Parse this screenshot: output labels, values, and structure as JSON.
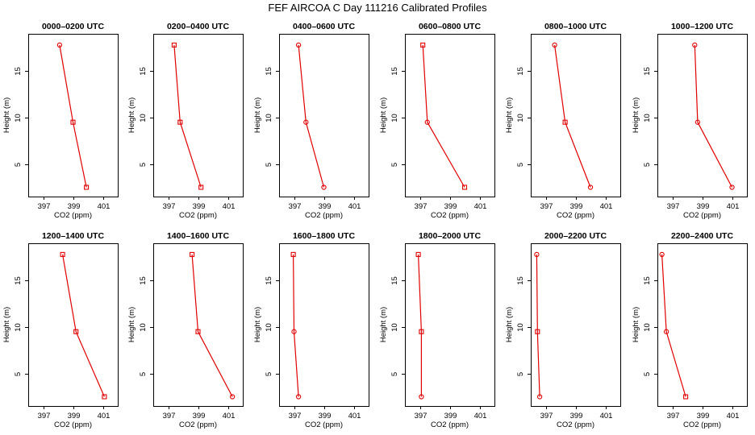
{
  "figure_title": "FEF AIRCOA C  Day 111216  Calibrated Profiles",
  "series_color": "#e00000",
  "chart_data": [
    {
      "type": "line",
      "title": "0000–0200 UTC",
      "xlabel": "CO2 (ppm)",
      "ylabel": "Height (m)",
      "xlim": [
        396,
        402
      ],
      "ylim": [
        1.5,
        19
      ],
      "xticks": [
        397,
        399,
        401
      ],
      "yticks": [
        5,
        10,
        15
      ],
      "x": [
        399.9,
        399.0,
        398.1
      ],
      "y": [
        2.5,
        9.5,
        17.8
      ],
      "markers": [
        "square",
        "square",
        "circle"
      ]
    },
    {
      "type": "line",
      "title": "0200–0400 UTC",
      "xlabel": "CO2 (ppm)",
      "ylabel": "Height (m)",
      "xlim": [
        396,
        402
      ],
      "ylim": [
        1.5,
        19
      ],
      "xticks": [
        397,
        399,
        401
      ],
      "yticks": [
        5,
        10,
        15
      ],
      "x": [
        399.2,
        397.8,
        397.4
      ],
      "y": [
        2.5,
        9.5,
        17.8
      ],
      "markers": [
        "square",
        "square",
        "square"
      ]
    },
    {
      "type": "line",
      "title": "0400–0600 UTC",
      "xlabel": "CO2 (ppm)",
      "ylabel": "Height (m)",
      "xlim": [
        396,
        402
      ],
      "ylim": [
        1.5,
        19
      ],
      "xticks": [
        397,
        399,
        401
      ],
      "yticks": [
        5,
        10,
        15
      ],
      "x": [
        399.0,
        397.8,
        397.3
      ],
      "y": [
        2.5,
        9.5,
        17.8
      ],
      "markers": [
        "circle",
        "circle",
        "circle"
      ]
    },
    {
      "type": "line",
      "title": "0600–0800 UTC",
      "xlabel": "CO2 (ppm)",
      "ylabel": "Height (m)",
      "xlim": [
        396,
        402
      ],
      "ylim": [
        1.5,
        19
      ],
      "xticks": [
        397,
        399,
        401
      ],
      "yticks": [
        5,
        10,
        15
      ],
      "x": [
        400.0,
        397.5,
        397.2
      ],
      "y": [
        2.5,
        9.5,
        17.8
      ],
      "markers": [
        "square",
        "circle",
        "square"
      ]
    },
    {
      "type": "line",
      "title": "0800–1000 UTC",
      "xlabel": "CO2 (ppm)",
      "ylabel": "Height (m)",
      "xlim": [
        396,
        402
      ],
      "ylim": [
        1.5,
        19
      ],
      "xticks": [
        397,
        399,
        401
      ],
      "yticks": [
        5,
        10,
        15
      ],
      "x": [
        400.0,
        398.3,
        397.6
      ],
      "y": [
        2.5,
        9.5,
        17.8
      ],
      "markers": [
        "circle",
        "square",
        "circle"
      ]
    },
    {
      "type": "line",
      "title": "1000–1200 UTC",
      "xlabel": "CO2 (ppm)",
      "ylabel": "Height (m)",
      "xlim": [
        396,
        402
      ],
      "ylim": [
        1.5,
        19
      ],
      "xticks": [
        397,
        399,
        401
      ],
      "yticks": [
        5,
        10,
        15
      ],
      "x": [
        401.0,
        398.7,
        398.5
      ],
      "y": [
        2.5,
        9.5,
        17.8
      ],
      "markers": [
        "circle",
        "circle",
        "circle"
      ]
    },
    {
      "type": "line",
      "title": "1200–1400 UTC",
      "xlabel": "CO2 (ppm)",
      "ylabel": "Height (m)",
      "xlim": [
        396,
        402
      ],
      "ylim": [
        1.5,
        19
      ],
      "xticks": [
        397,
        399,
        401
      ],
      "yticks": [
        5,
        10,
        15
      ],
      "x": [
        401.1,
        399.2,
        398.3
      ],
      "y": [
        2.5,
        9.5,
        17.8
      ],
      "markers": [
        "square",
        "square",
        "square"
      ]
    },
    {
      "type": "line",
      "title": "1400–1600 UTC",
      "xlabel": "CO2 (ppm)",
      "ylabel": "Height (m)",
      "xlim": [
        396,
        402
      ],
      "ylim": [
        1.5,
        19
      ],
      "xticks": [
        397,
        399,
        401
      ],
      "yticks": [
        5,
        10,
        15
      ],
      "x": [
        401.3,
        399.0,
        398.6
      ],
      "y": [
        2.5,
        9.5,
        17.8
      ],
      "markers": [
        "circle",
        "square",
        "square"
      ]
    },
    {
      "type": "line",
      "title": "1600–1800 UTC",
      "xlabel": "CO2 (ppm)",
      "ylabel": "Height (m)",
      "xlim": [
        396,
        402
      ],
      "ylim": [
        1.5,
        19
      ],
      "xticks": [
        397,
        399,
        401
      ],
      "yticks": [
        5,
        10,
        15
      ],
      "x": [
        397.3,
        397.0,
        396.95
      ],
      "y": [
        2.5,
        9.5,
        17.8
      ],
      "markers": [
        "circle",
        "circle",
        "square"
      ]
    },
    {
      "type": "line",
      "title": "1800–2000 UTC",
      "xlabel": "CO2 (ppm)",
      "ylabel": "Height (m)",
      "xlim": [
        396,
        402
      ],
      "ylim": [
        1.5,
        19
      ],
      "xticks": [
        397,
        399,
        401
      ],
      "yticks": [
        5,
        10,
        15
      ],
      "x": [
        397.1,
        397.1,
        396.9
      ],
      "y": [
        2.5,
        9.5,
        17.8
      ],
      "markers": [
        "circle",
        "square",
        "square"
      ]
    },
    {
      "type": "line",
      "title": "2000–2200 UTC",
      "xlabel": "CO2 (ppm)",
      "ylabel": "Height (m)",
      "xlim": [
        396,
        402
      ],
      "ylim": [
        1.5,
        19
      ],
      "xticks": [
        397,
        399,
        401
      ],
      "yticks": [
        5,
        10,
        15
      ],
      "x": [
        396.6,
        396.45,
        396.4
      ],
      "y": [
        2.5,
        9.5,
        17.8
      ],
      "markers": [
        "circle",
        "square",
        "circle"
      ]
    },
    {
      "type": "line",
      "title": "2200–2400 UTC",
      "xlabel": "CO2 (ppm)",
      "ylabel": "Height (m)",
      "xlim": [
        396,
        402
      ],
      "ylim": [
        1.5,
        19
      ],
      "xticks": [
        397,
        399,
        401
      ],
      "yticks": [
        5,
        10,
        15
      ],
      "x": [
        397.9,
        396.6,
        396.3
      ],
      "y": [
        2.5,
        9.5,
        17.8
      ],
      "markers": [
        "square",
        "circle",
        "circle"
      ]
    }
  ]
}
